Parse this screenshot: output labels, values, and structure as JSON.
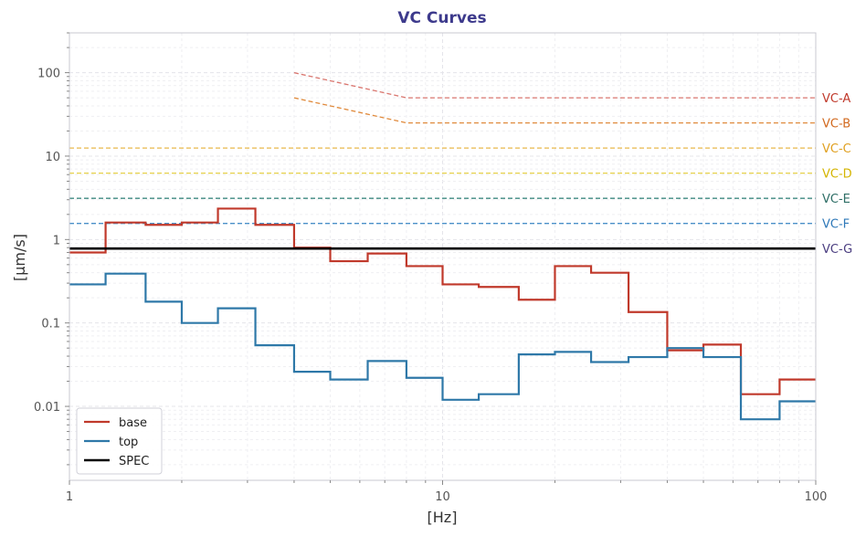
{
  "chart_data": {
    "type": "line",
    "title": "VC Curves",
    "xlabel": "[Hz]",
    "ylabel": "[µm/s]",
    "xscale": "log",
    "yscale": "log",
    "xlim": [
      1,
      100
    ],
    "ylim": [
      0.0013,
      300
    ],
    "grid": true,
    "legend_position": "lower-left",
    "x_ticks": [
      {
        "value": 1,
        "label": "1"
      },
      {
        "value": 10,
        "label": "10"
      },
      {
        "value": 100,
        "label": "100"
      }
    ],
    "y_ticks": [
      {
        "value": 0.01,
        "label": "0.01"
      },
      {
        "value": 0.1,
        "label": "0.1"
      },
      {
        "value": 1,
        "label": "1"
      },
      {
        "value": 10,
        "label": "10"
      },
      {
        "value": 100,
        "label": "100"
      }
    ],
    "series": [
      {
        "name": "base",
        "color": "#c0392b",
        "style": "step",
        "edges": [
          1,
          1.25,
          1.6,
          2,
          2.5,
          3.15,
          4,
          5,
          6.3,
          8,
          10,
          12.5,
          16,
          20,
          25,
          31.5,
          40,
          50,
          63,
          80,
          100
        ],
        "values": [
          0.7,
          1.6,
          1.5,
          1.6,
          2.35,
          1.5,
          0.8,
          0.55,
          0.68,
          0.48,
          0.29,
          0.27,
          0.19,
          0.48,
          0.4,
          0.135,
          0.047,
          0.055,
          0.014,
          0.021
        ]
      },
      {
        "name": "top",
        "color": "#2e78a8",
        "style": "step",
        "edges": [
          1,
          1.25,
          1.6,
          2,
          2.5,
          3.15,
          4,
          5,
          6.3,
          8,
          10,
          12.5,
          16,
          20,
          25,
          31.5,
          40,
          50,
          63,
          80,
          100
        ],
        "values": [
          0.29,
          0.39,
          0.18,
          0.1,
          0.15,
          0.054,
          0.026,
          0.021,
          0.035,
          0.022,
          0.012,
          0.014,
          0.042,
          0.045,
          0.034,
          0.039,
          0.05,
          0.039,
          0.007,
          0.0115
        ]
      },
      {
        "name": "SPEC",
        "color": "#000000",
        "style": "line",
        "x": [
          1,
          100
        ],
        "y": [
          0.78,
          0.78
        ]
      }
    ],
    "reference_curves": [
      {
        "label": "VC-A",
        "color": "#d9756e",
        "label_color": "#c0392b",
        "x": [
          4,
          8,
          100
        ],
        "y": [
          100,
          50,
          50
        ]
      },
      {
        "label": "VC-B",
        "color": "#e08a3c",
        "label_color": "#d2691e",
        "x": [
          4,
          8,
          100
        ],
        "y": [
          50,
          25,
          25
        ]
      },
      {
        "label": "VC-C",
        "color": "#e8b84b",
        "label_color": "#e0a020",
        "x": [
          1,
          100
        ],
        "y": [
          12.5,
          12.5
        ]
      },
      {
        "label": "VC-D",
        "color": "#e6d04a",
        "label_color": "#d4b400",
        "x": [
          1,
          100
        ],
        "y": [
          6.25,
          6.25
        ]
      },
      {
        "label": "VC-E",
        "color": "#3e8a80",
        "label_color": "#2e6e66",
        "x": [
          1,
          100
        ],
        "y": [
          3.12,
          3.12
        ]
      },
      {
        "label": "VC-F",
        "color": "#4a90c8",
        "label_color": "#2e78b8",
        "x": [
          1,
          100
        ],
        "y": [
          1.56,
          1.56
        ]
      },
      {
        "label": "VC-G",
        "color": "#5a4a8a",
        "label_color": "#4a3d80",
        "x": [],
        "y": [],
        "label_y": 0.78
      }
    ]
  }
}
